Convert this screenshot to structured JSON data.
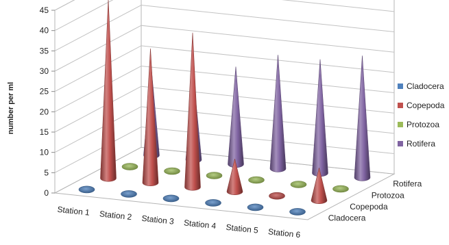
{
  "chart_data": {
    "type": "bar",
    "variant": "3d-cone",
    "title": "",
    "xlabel": "",
    "ylabel": "number per ml",
    "ylim": [
      0,
      45
    ],
    "yticks": [
      0,
      5,
      10,
      15,
      20,
      25,
      30,
      35,
      40,
      45
    ],
    "categories": [
      "Station 1",
      "Station 2",
      "Station 3",
      "Station 4",
      "Station 5",
      "Station 6"
    ],
    "depth_labels": [
      "Cladocera",
      "Copepoda",
      "Protozoa",
      "Rotifera"
    ],
    "series": [
      {
        "name": "Cladocera",
        "color": "#4f81bd",
        "values": [
          0,
          0,
          0,
          0,
          0,
          0
        ]
      },
      {
        "name": "Copepoda",
        "color": "#c0504d",
        "values": [
          44,
          33,
          38,
          8,
          0,
          8
        ]
      },
      {
        "name": "Protozoa",
        "color": "#9bbb59",
        "values": [
          0,
          0,
          0,
          0,
          0,
          0
        ]
      },
      {
        "name": "Rotifera",
        "color": "#8064a2",
        "values": [
          21,
          20,
          24,
          28,
          28,
          30
        ]
      }
    ],
    "legend_position": "right",
    "grid": true
  }
}
